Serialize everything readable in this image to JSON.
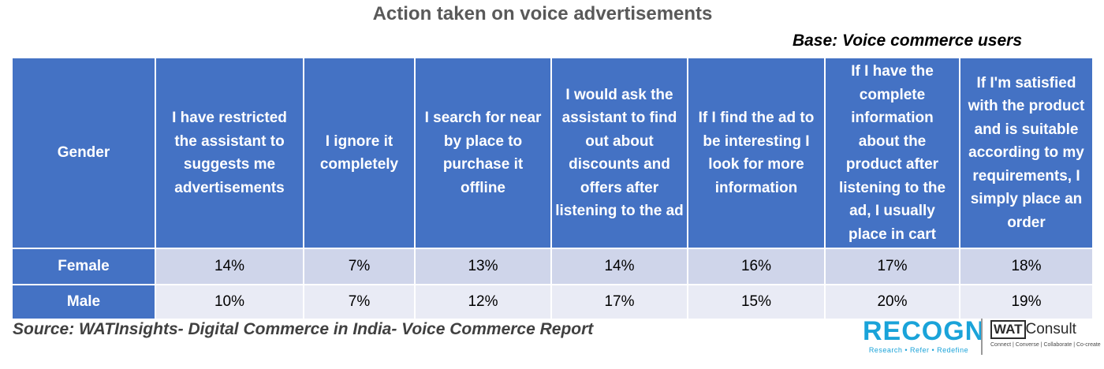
{
  "chart_data": {
    "type": "table",
    "title": "Action taken on voice advertisements",
    "subtitle": "Base: Voice commerce users",
    "columns": [
      "Gender",
      "I have restricted the assistant to suggests me advertisements",
      "I ignore it completely",
      "I search for near by place to purchase it offline",
      "I would ask the assistant to find out about discounts and offers after listening to the ad",
      "If I find the ad to be interesting I look for more information",
      "If I have the complete information about the product after listening to the ad, I usually place in cart",
      "If I'm satisfied with the product and is suitable according to my requirements, I simply place an order"
    ],
    "rows": [
      [
        "Female",
        "14%",
        "7%",
        "13%",
        "14%",
        "16%",
        "17%",
        "18%"
      ],
      [
        "Male",
        "10%",
        "7%",
        "12%",
        "17%",
        "15%",
        "20%",
        "19%"
      ]
    ],
    "source": "Source: WATInsights- Digital Commerce in India- Voice Commerce Report"
  },
  "colors": {
    "header": "#4472c4",
    "row_a": "#cfd5ea",
    "row_b": "#e9ebf5"
  },
  "logos": {
    "recogn": "RECOGN",
    "recogn_tagline": "Research • Refer • Redefine",
    "wat": "WAT",
    "consult": "Consult",
    "wat_tagline": "Connect | Converse | Collaborate | Co-create"
  }
}
